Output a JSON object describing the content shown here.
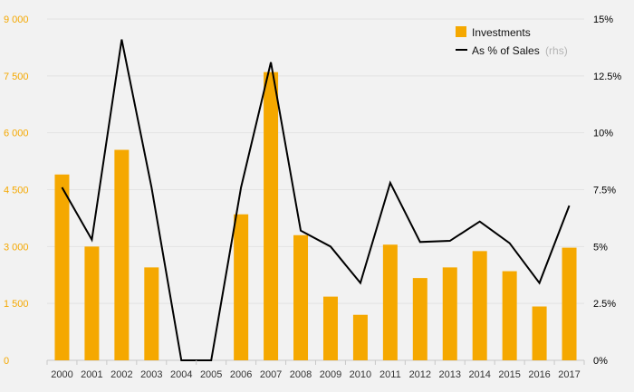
{
  "chart_data": {
    "type": "bar",
    "categories": [
      "2000",
      "2001",
      "2002",
      "2003",
      "2004",
      "2005",
      "2006",
      "2007",
      "2008",
      "2009",
      "2010",
      "2011",
      "2012",
      "2013",
      "2014",
      "2015",
      "2016",
      "2017"
    ],
    "series": [
      {
        "name": "Investments",
        "type": "bar",
        "axis": "left",
        "color": "#f5a800",
        "values": [
          4900,
          3000,
          5550,
          2450,
          0,
          0,
          3850,
          7600,
          3300,
          1680,
          1200,
          3050,
          2170,
          2450,
          2880,
          2350,
          1420,
          2970
        ]
      },
      {
        "name": "As % of Sales",
        "name_suffix": "(rhs)",
        "type": "line",
        "axis": "right",
        "color": "#000000",
        "values": [
          7.6,
          5.3,
          14.1,
          7.6,
          0.0,
          0.0,
          7.6,
          13.1,
          5.7,
          5.0,
          3.4,
          7.8,
          5.2,
          5.25,
          6.1,
          5.15,
          3.4,
          6.8
        ]
      }
    ],
    "y_left": {
      "ylim": [
        0,
        9000
      ],
      "ticks": [
        "0",
        "1 500",
        "3 000",
        "4 500",
        "6 000",
        "7 500",
        "9 000"
      ],
      "tick_values": [
        0,
        1500,
        3000,
        4500,
        6000,
        7500,
        9000
      ],
      "color": "#f5a800"
    },
    "y_right": {
      "ylim": [
        0,
        15
      ],
      "ticks": [
        "0%",
        "2.5%",
        "5%",
        "7.5%",
        "10%",
        "12.5%",
        "15%"
      ],
      "tick_values": [
        0,
        2.5,
        5,
        7.5,
        10,
        12.5,
        15
      ]
    },
    "title": "",
    "xlabel": "",
    "ylabel": "",
    "grid": true,
    "legend": {
      "position": "top-right",
      "items": [
        {
          "label": "Investments",
          "note": ""
        },
        {
          "label": "As % of Sales",
          "note": "(rhs)"
        }
      ]
    }
  }
}
